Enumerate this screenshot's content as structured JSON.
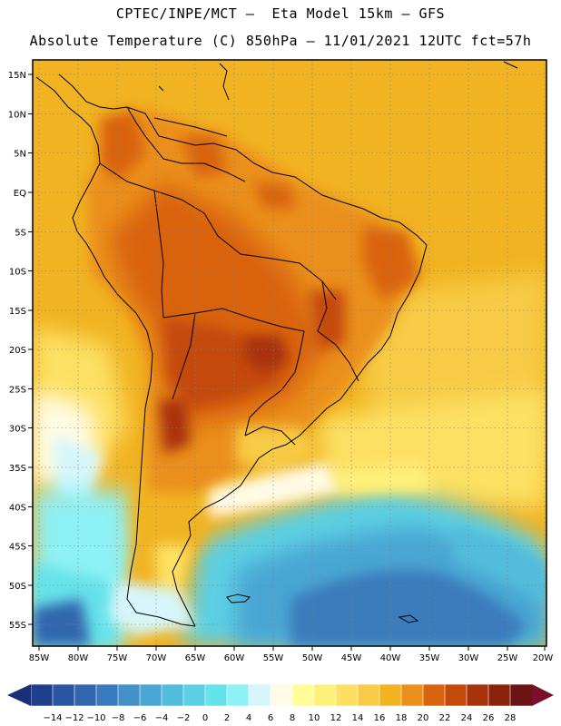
{
  "title": {
    "line1": "CPTEC/INPE/MCT –  Eta Model 15km – GFS",
    "line2": "Absolute Temperature (C) 850hPa – 11/01/2021 12UTC fct=57h"
  },
  "map": {
    "region": "South America",
    "lat_ticks": [
      "15N",
      "10N",
      "5N",
      "EQ",
      "5S",
      "10S",
      "15S",
      "20S",
      "25S",
      "30S",
      "35S",
      "40S",
      "45S",
      "50S",
      "55S"
    ],
    "lon_ticks": [
      "85W",
      "80W",
      "75W",
      "70W",
      "65W",
      "60W",
      "55W",
      "50W",
      "45W",
      "40W",
      "35W",
      "30W",
      "25W",
      "20W"
    ]
  },
  "colorbar": {
    "labels": [
      "-14",
      "-12",
      "-10",
      "-8",
      "-6",
      "-4",
      "-2",
      "0",
      "2",
      "4",
      "6",
      "8",
      "10",
      "12",
      "14",
      "16",
      "18",
      "20",
      "22",
      "24",
      "26",
      "28"
    ],
    "colors": [
      "#1f3f8c",
      "#2a55a0",
      "#3266ae",
      "#3a7bbd",
      "#4391c8",
      "#4aa6d3",
      "#52bcdc",
      "#5cd0e4",
      "#66e2ea",
      "#8ef1f5",
      "#d6f6fb",
      "#fffbe6",
      "#fffc99",
      "#fff07a",
      "#fde063",
      "#f7cb45",
      "#f1b321",
      "#eb8f1d",
      "#d9640f",
      "#c44a0c",
      "#a8320b",
      "#8a220c",
      "#6c1414"
    ],
    "low_arrow_color": "#1a2f7a",
    "high_arrow_color": "#7a0f2c"
  }
}
